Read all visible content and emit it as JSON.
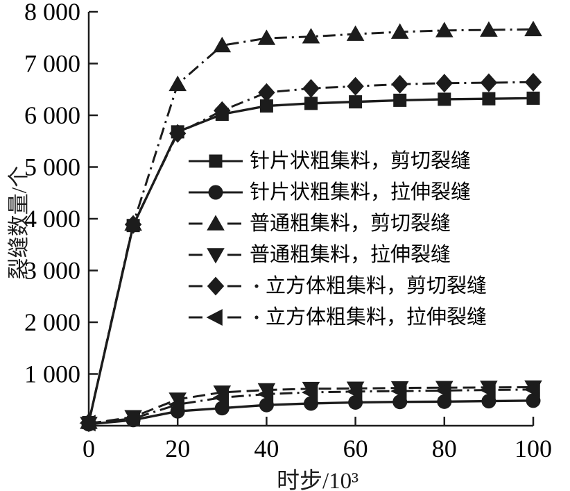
{
  "chart_data": {
    "type": "line",
    "title": "",
    "xlabel": "时步/10³",
    "ylabel": "裂缝数量/个",
    "xlim": [
      0,
      100
    ],
    "ylim": [
      0,
      8000
    ],
    "grid": false,
    "legend_position": "inside-center-right",
    "line_color": "#1c1c1c",
    "x_ticks": [
      0,
      20,
      40,
      60,
      80,
      100
    ],
    "x_tick_labels": [
      "0",
      "20",
      "40",
      "60",
      "80",
      "100"
    ],
    "y_ticks": [
      1000,
      2000,
      3000,
      4000,
      5000,
      6000,
      7000,
      8000
    ],
    "y_tick_labels": [
      "1 000",
      "2 000",
      "3 000",
      "4 000",
      "5 000",
      "6 000",
      "7 000",
      "8 000"
    ],
    "x": [
      0,
      10,
      20,
      30,
      40,
      50,
      60,
      70,
      80,
      90,
      100
    ],
    "series": [
      {
        "name": "针片状粗集料，剪切裂缝",
        "marker": "square",
        "line": "solid",
        "values": [
          60,
          3870,
          5680,
          6020,
          6180,
          6230,
          6260,
          6290,
          6310,
          6320,
          6330
        ]
      },
      {
        "name": "针片状粗集料，拉伸裂缝",
        "marker": "circle",
        "line": "solid",
        "values": [
          30,
          110,
          280,
          340,
          400,
          430,
          450,
          460,
          465,
          475,
          485
        ]
      },
      {
        "name": "普通粗集料，剪切裂缝",
        "marker": "triangle-up",
        "line": "dashdot",
        "values": [
          70,
          3900,
          6600,
          7350,
          7490,
          7520,
          7570,
          7610,
          7640,
          7650,
          7660
        ]
      },
      {
        "name": "普通粗集料，拉伸裂缝",
        "marker": "triangle-down",
        "line": "dashed",
        "values": [
          40,
          170,
          510,
          645,
          690,
          715,
          720,
          730,
          735,
          740,
          745
        ]
      },
      {
        "name": "立方体粗集料，剪切裂缝",
        "marker": "diamond",
        "line": "dashdot",
        "values": [
          60,
          3890,
          5650,
          6090,
          6440,
          6520,
          6560,
          6600,
          6620,
          6630,
          6640
        ]
      },
      {
        "name": "立方体粗集料，拉伸裂缝",
        "marker": "triangle-left",
        "line": "dashdot",
        "values": [
          50,
          140,
          410,
          545,
          610,
          645,
          660,
          670,
          680,
          690,
          700
        ]
      }
    ]
  }
}
